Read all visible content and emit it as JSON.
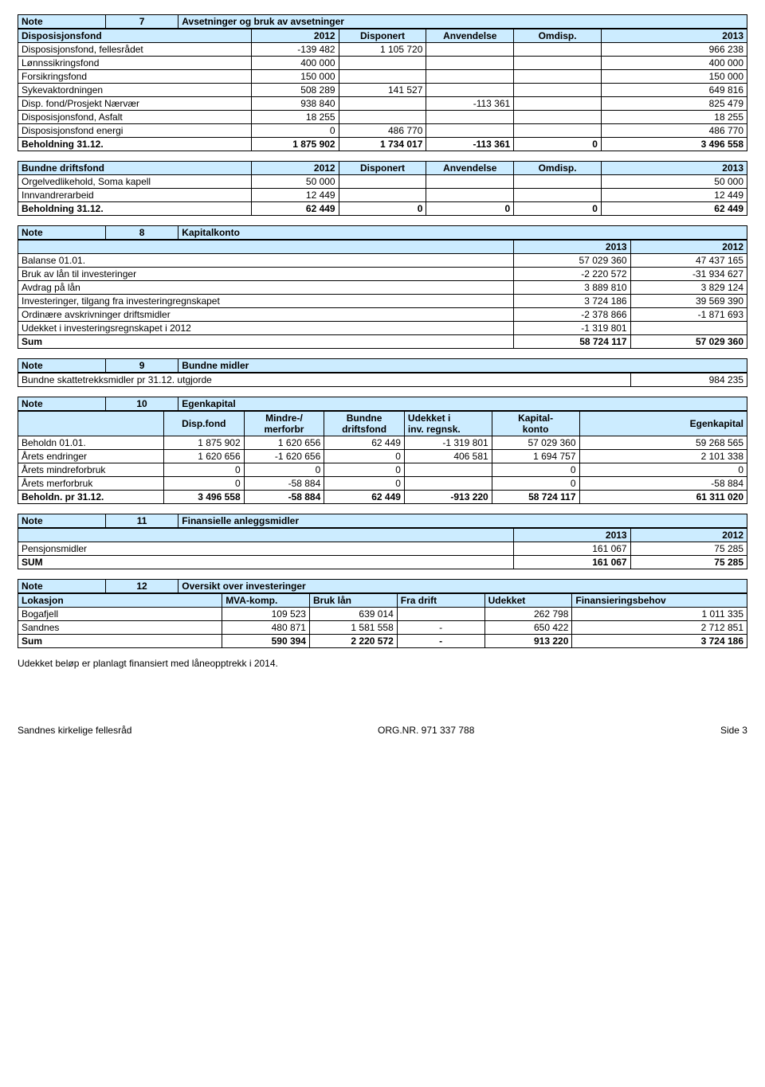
{
  "note7": {
    "noteLabel": "Note",
    "noteNum": "7",
    "title": "Avsetninger og bruk av avsetninger",
    "h": [
      "Disposisjonsfond",
      "2012",
      "Disponert",
      "Anvendelse",
      "Omdisp.",
      "2013"
    ],
    "rows": [
      [
        "Disposisjonsfond, fellesrådet",
        "-139 482",
        "1 105 720",
        "",
        "",
        "966 238"
      ],
      [
        "Lønnssikringsfond",
        "400 000",
        "",
        "",
        "",
        "400 000"
      ],
      [
        "Forsikringsfond",
        "150 000",
        "",
        "",
        "",
        "150 000"
      ],
      [
        "Sykevaktordningen",
        "508 289",
        "141 527",
        "",
        "",
        "649 816"
      ],
      [
        "Disp. fond/Prosjekt Nærvær",
        "938 840",
        "",
        "-113 361",
        "",
        "825 479"
      ],
      [
        "Disposisjonsfond, Asfalt",
        "18 255",
        "",
        "",
        "",
        "18 255"
      ],
      [
        "Disposisjonsfond energi",
        "0",
        "486 770",
        "",
        "",
        "486 770"
      ]
    ],
    "sum": [
      "Beholdning 31.12.",
      "1 875 902",
      "1 734 017",
      "-113 361",
      "0",
      "3 496 558"
    ]
  },
  "note7b": {
    "h": [
      "Bundne driftsfond",
      "2012",
      "Disponert",
      "Anvendelse",
      "Omdisp.",
      "2013"
    ],
    "rows": [
      [
        "Orgelvedlikehold, Soma kapell",
        "50 000",
        "",
        "",
        "",
        "50 000"
      ],
      [
        "Innvandrerarbeid",
        "12 449",
        "",
        "",
        "",
        "12 449"
      ]
    ],
    "sum": [
      "Beholdning 31.12.",
      "62 449",
      "0",
      "0",
      "0",
      "62 449"
    ]
  },
  "note8": {
    "noteLabel": "Note",
    "noteNum": "8",
    "title": "Kapitalkonto",
    "yh": [
      "2013",
      "2012"
    ],
    "rows": [
      [
        "Balanse 01.01.",
        "57 029 360",
        "47 437 165"
      ],
      [
        "Bruk av lån til investeringer",
        "-2 220 572",
        "-31 934 627"
      ],
      [
        "Avdrag på lån",
        "3 889 810",
        "3 829 124"
      ],
      [
        "Investeringer, tilgang fra investeringregnskapet",
        "3 724 186",
        "39 569 390"
      ],
      [
        "Ordinære avskrivninger driftsmidler",
        "-2 378 866",
        "-1 871 693"
      ],
      [
        "Udekket i investeringsregnskapet i 2012",
        "-1 319 801",
        ""
      ]
    ],
    "sum": [
      "Sum",
      "58 724 117",
      "57 029 360"
    ]
  },
  "note9": {
    "noteLabel": "Note",
    "noteNum": "9",
    "title": "Bundne midler",
    "row": [
      "Bundne skattetrekksmidler pr 31.12. utgjorde",
      "984 235"
    ]
  },
  "note10": {
    "noteLabel": "Note",
    "noteNum": "10",
    "title": "Egenkapital",
    "h": [
      "",
      "Disp.fond",
      "Mindre-/\nmerforbr",
      "Bundne\ndriftsfond",
      "Udekket i\ninv. regnsk.",
      "Kapital-\nkonto",
      "Egenkapital"
    ],
    "rows": [
      [
        "Beholdn 01.01.",
        "1 875 902",
        "1 620 656",
        "62 449",
        "-1 319 801",
        "57 029 360",
        "59 268 565"
      ],
      [
        "Årets endringer",
        "1 620 656",
        "-1 620 656",
        "0",
        "406 581",
        "1 694 757",
        "2 101 338"
      ],
      [
        "Årets mindreforbruk",
        "0",
        "0",
        "0",
        "",
        "0",
        "0"
      ],
      [
        "Årets merforbruk",
        "0",
        "-58 884",
        "0",
        "",
        "0",
        "-58 884"
      ]
    ],
    "sum": [
      "Beholdn. pr 31.12.",
      "3 496 558",
      "-58 884",
      "62 449",
      "-913 220",
      "58 724 117",
      "61 311 020"
    ]
  },
  "note11": {
    "noteLabel": "Note",
    "noteNum": "11",
    "title": "Finansielle anleggsmidler",
    "yh": [
      "2013",
      "2012"
    ],
    "rows": [
      [
        "Pensjonsmidler",
        "161 067",
        "75 285"
      ]
    ],
    "sum": [
      "SUM",
      "161 067",
      "75 285"
    ]
  },
  "note12": {
    "noteLabel": "Note",
    "noteNum": "12",
    "title": "Oversikt over investeringer",
    "h": [
      "Lokasjon",
      "MVA-komp.",
      "Bruk lån",
      "Fra drift",
      "Udekket",
      "Finansieringsbehov"
    ],
    "rows": [
      [
        "Bogafjell",
        "109 523",
        "639 014",
        "",
        "262 798",
        "1 011 335"
      ],
      [
        "Sandnes",
        "480 871",
        "1 581 558",
        "-",
        "650 422",
        "2 712 851"
      ]
    ],
    "sum": [
      "Sum",
      "590 394",
      "2 220 572",
      "-",
      "913 220",
      "3 724 186"
    ]
  },
  "footnote": "Udekket beløp er planlagt finansiert med låneopptrekk i 2014.",
  "footer": {
    "left": "Sandnes kirkelige fellesråd",
    "center": "ORG.NR. 971 337 788",
    "right": "Side 3"
  }
}
